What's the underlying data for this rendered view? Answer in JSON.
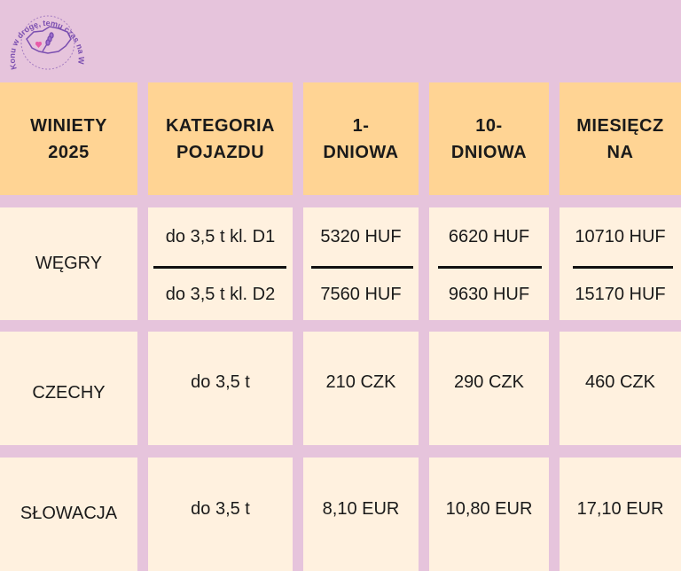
{
  "logo": {
    "text": "Konu w drogę, temu czas na Węgry"
  },
  "table": {
    "headers": [
      "WINIETY 2025",
      "KATEGORIA POJAZDU",
      "1-DNIOWA",
      "10-DNIOWA",
      "MIESIĘCZNA"
    ],
    "headers_display": [
      [
        "WINIETY",
        "2025"
      ],
      [
        "KATEGORIA",
        "POJAZDU"
      ],
      [
        "1-",
        "DNIOWA"
      ],
      [
        "10-",
        "DNIOWA"
      ],
      [
        "MIESIĘCZ",
        "NA"
      ]
    ],
    "rows": [
      {
        "country": "WĘGRY",
        "category": [
          "do 3,5 t kl. D1",
          "do 3,5 t kl. D2"
        ],
        "day1": [
          "5320 HUF",
          "7560 HUF"
        ],
        "day10": [
          "6620 HUF",
          "9630 HUF"
        ],
        "month": [
          "10710 HUF",
          "15170 HUF"
        ]
      },
      {
        "country": "CZECHY",
        "category": "do 3,5 t",
        "day1": "210 CZK",
        "day10": "290 CZK",
        "month": "460 CZK"
      },
      {
        "country": "SŁOWACJA",
        "category": "do 3,5 t",
        "day1": "8,10 EUR",
        "day10": "10,80 EUR",
        "month": "17,10 EUR"
      }
    ]
  },
  "colors": {
    "background": "#e6c4dc",
    "header": "#ffd494",
    "cell": "#fff1df",
    "logo": "#7b4fb0"
  }
}
